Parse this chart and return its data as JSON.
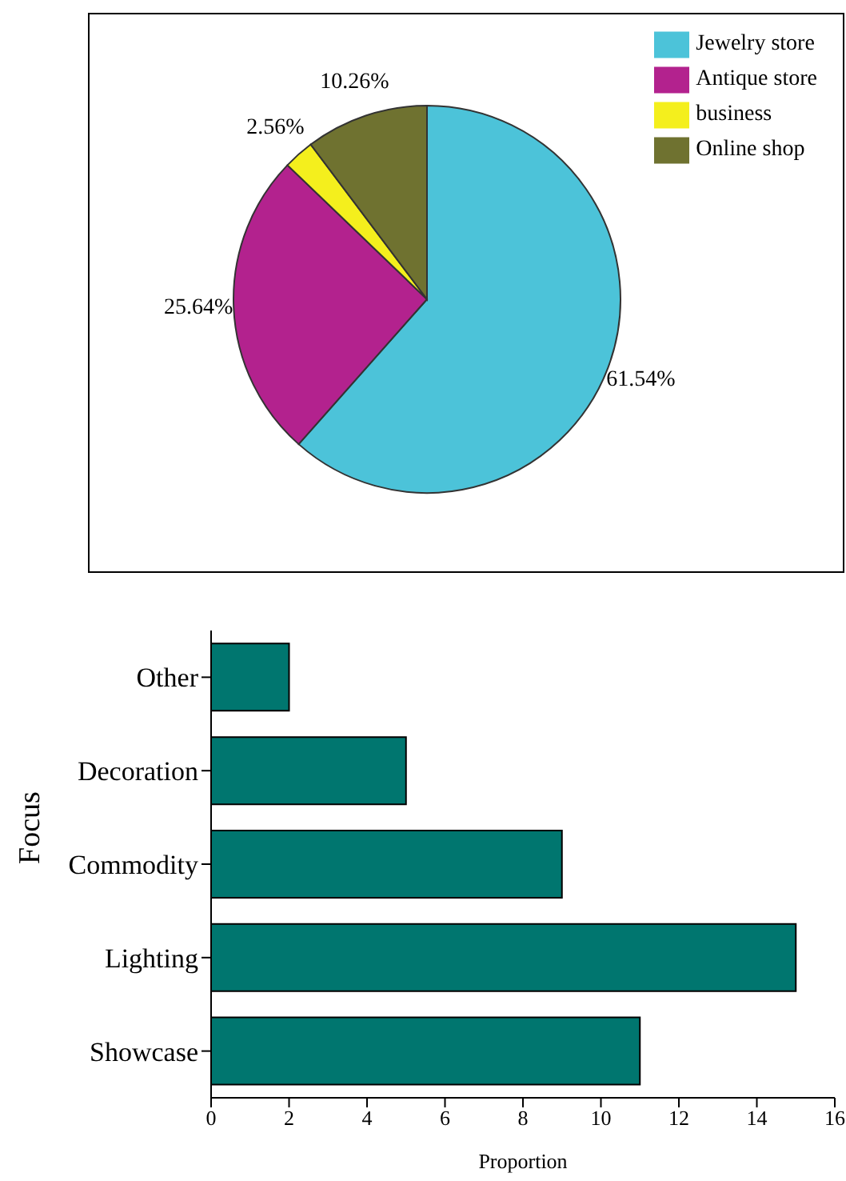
{
  "chart_data": [
    {
      "type": "pie",
      "categories": [
        "Jewelry store",
        "Antique store",
        "business",
        "Online shop"
      ],
      "values": [
        61.54,
        25.64,
        2.56,
        10.26
      ],
      "value_labels": [
        "61.54%",
        "25.64%",
        "2.56%",
        "10.26%"
      ],
      "colors": [
        "#4cc3d9",
        "#b3228e",
        "#f4ef1d",
        "#6f7230"
      ],
      "legend": "top right"
    },
    {
      "type": "bar",
      "orientation": "horizontal",
      "categories": [
        "Other",
        "Decoration",
        "Commodity",
        "Lighting",
        "Showcase"
      ],
      "values": [
        2,
        5,
        9,
        15,
        11
      ],
      "color": "#00766f",
      "xlabel": "Proportion",
      "ylabel": "Focus",
      "xlim": [
        0,
        16
      ],
      "xticks": [
        0,
        2,
        4,
        6,
        8,
        10,
        12,
        14,
        16
      ],
      "legend": false
    }
  ]
}
